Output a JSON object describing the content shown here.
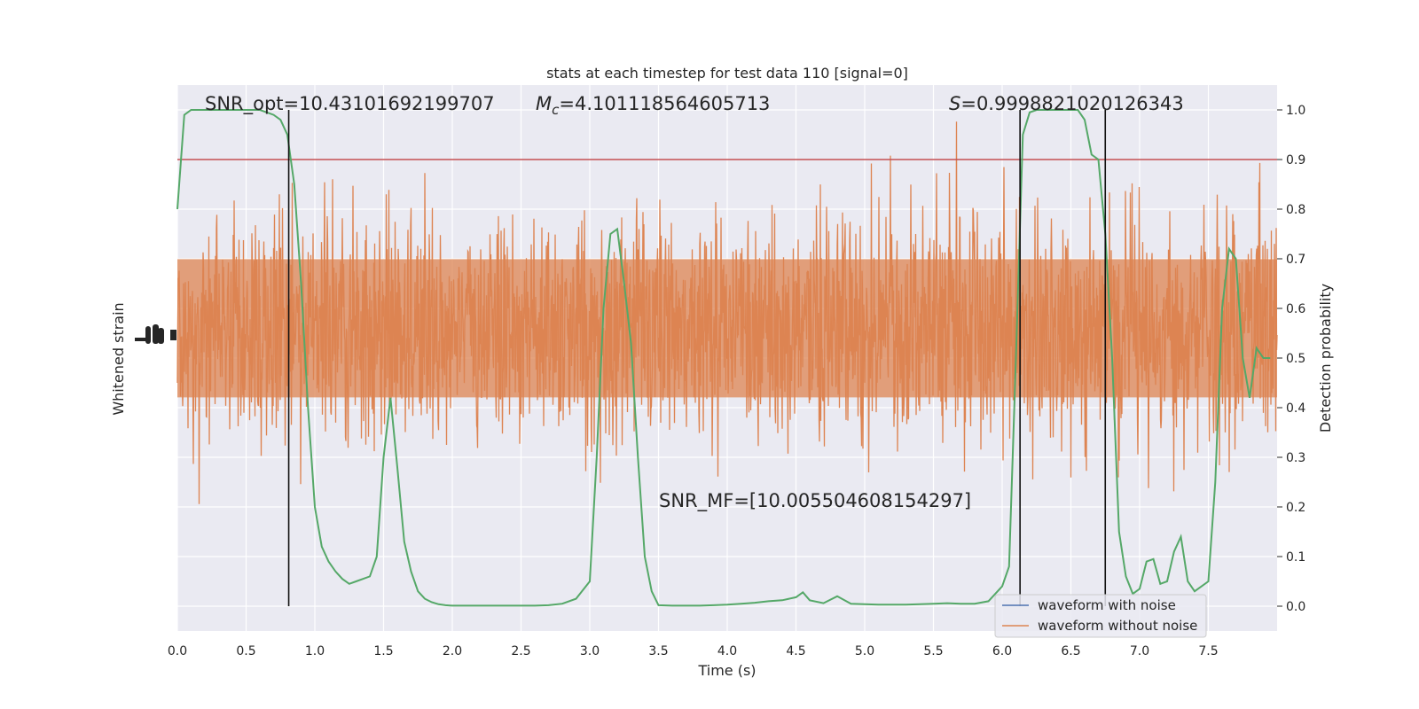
{
  "chart_data": {
    "type": "line",
    "title": "stats at each timestep for test data 110 [signal=0]",
    "xlabel": "Time (s)",
    "ylabel_left": "Whitened strain",
    "ylabel_right": "Detection probability",
    "xlim": [
      0.0,
      8.0
    ],
    "ylim_right": [
      -0.05,
      1.05
    ],
    "x_ticks": [
      0.0,
      0.5,
      1.0,
      1.5,
      2.0,
      2.5,
      3.0,
      3.5,
      4.0,
      4.5,
      5.0,
      5.5,
      6.0,
      6.5,
      7.0,
      7.5
    ],
    "x_tick_labels": [
      "0.0",
      "0.5",
      "1.0",
      "1.5",
      "2.0",
      "2.5",
      "3.0",
      "3.5",
      "4.0",
      "4.5",
      "5.0",
      "5.5",
      "6.0",
      "6.5",
      "7.0",
      "7.5"
    ],
    "y_right_ticks": [
      0.0,
      0.1,
      0.2,
      0.3,
      0.4,
      0.5,
      0.6,
      0.7,
      0.8,
      0.9,
      1.0
    ],
    "y_right_tick_labels": [
      "0.0",
      "0.1",
      "0.2",
      "0.3",
      "0.4",
      "0.5",
      "0.6",
      "0.7",
      "0.8",
      "0.9",
      "1.0"
    ],
    "grid": true,
    "legend_position": "lower-right",
    "annotations": {
      "snr_opt": "SNR_opt=10.43101692199707",
      "mc_symbol": "M",
      "mc_sub": "c",
      "mc_value": "=4.101118564605713",
      "s_symbol": "S",
      "s_value": "=0.9998821020126343",
      "snr_mf": "SNR_MF=[10.005504608154297]"
    },
    "threshold": 0.9,
    "vertical_lines": [
      0.81,
      6.13,
      6.75
    ],
    "series": [
      {
        "name": "waveform with noise",
        "color": "#4c72b0"
      },
      {
        "name": "waveform without noise",
        "color": "#dd8452"
      }
    ],
    "detection_probability": {
      "color": "#55a868",
      "x": [
        0.0,
        0.05,
        0.1,
        0.15,
        0.2,
        0.3,
        0.4,
        0.5,
        0.6,
        0.65,
        0.7,
        0.75,
        0.8,
        0.85,
        0.9,
        0.95,
        1.0,
        1.05,
        1.1,
        1.15,
        1.2,
        1.25,
        1.3,
        1.35,
        1.4,
        1.45,
        1.5,
        1.55,
        1.6,
        1.65,
        1.7,
        1.75,
        1.8,
        1.85,
        1.9,
        1.95,
        2.0,
        2.1,
        2.2,
        2.3,
        2.4,
        2.5,
        2.6,
        2.7,
        2.8,
        2.9,
        3.0,
        3.05,
        3.1,
        3.15,
        3.2,
        3.25,
        3.3,
        3.35,
        3.4,
        3.45,
        3.5,
        3.6,
        3.7,
        3.8,
        3.9,
        4.0,
        4.1,
        4.2,
        4.3,
        4.4,
        4.5,
        4.55,
        4.6,
        4.7,
        4.8,
        4.9,
        5.0,
        5.1,
        5.2,
        5.3,
        5.4,
        5.5,
        5.6,
        5.7,
        5.8,
        5.9,
        6.0,
        6.05,
        6.1,
        6.15,
        6.2,
        6.25,
        6.3,
        6.4,
        6.5,
        6.55,
        6.6,
        6.65,
        6.7,
        6.75,
        6.8,
        6.85,
        6.9,
        6.95,
        7.0,
        7.05,
        7.1,
        7.15,
        7.2,
        7.25,
        7.3,
        7.35,
        7.4,
        7.45,
        7.5,
        7.55,
        7.6,
        7.65,
        7.7,
        7.75,
        7.8,
        7.85,
        7.9,
        7.95
      ],
      "y": [
        0.8,
        0.99,
        1.0,
        1.0,
        1.0,
        1.0,
        1.0,
        1.0,
        1.0,
        0.995,
        0.99,
        0.98,
        0.95,
        0.85,
        0.65,
        0.4,
        0.2,
        0.12,
        0.09,
        0.07,
        0.055,
        0.045,
        0.05,
        0.055,
        0.06,
        0.1,
        0.3,
        0.42,
        0.28,
        0.13,
        0.07,
        0.03,
        0.015,
        0.008,
        0.004,
        0.002,
        0.001,
        0.001,
        0.001,
        0.001,
        0.001,
        0.001,
        0.001,
        0.002,
        0.005,
        0.015,
        0.05,
        0.3,
        0.6,
        0.75,
        0.76,
        0.65,
        0.53,
        0.3,
        0.1,
        0.03,
        0.002,
        0.001,
        0.001,
        0.001,
        0.002,
        0.003,
        0.005,
        0.007,
        0.01,
        0.012,
        0.018,
        0.028,
        0.012,
        0.006,
        0.02,
        0.005,
        0.004,
        0.003,
        0.003,
        0.003,
        0.004,
        0.005,
        0.006,
        0.005,
        0.005,
        0.01,
        0.04,
        0.08,
        0.5,
        0.95,
        0.995,
        1.0,
        1.0,
        1.0,
        1.0,
        1.0,
        0.98,
        0.91,
        0.9,
        0.75,
        0.5,
        0.15,
        0.06,
        0.025,
        0.035,
        0.09,
        0.095,
        0.045,
        0.05,
        0.11,
        0.14,
        0.05,
        0.03,
        0.04,
        0.05,
        0.25,
        0.6,
        0.72,
        0.7,
        0.5,
        0.42,
        0.52,
        0.5,
        0.5
      ]
    }
  }
}
